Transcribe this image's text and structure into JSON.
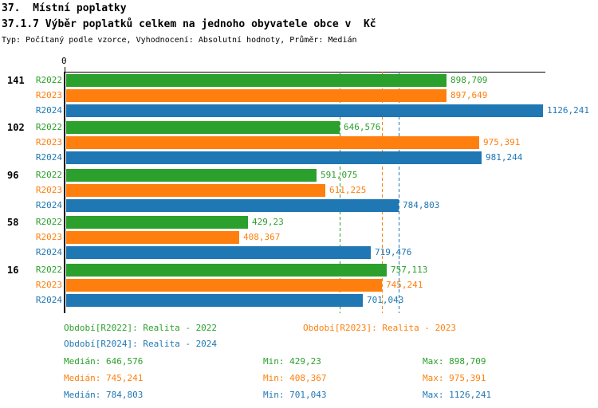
{
  "header": {
    "title": "37.  Místní poplatky",
    "subtitle": "37.1.7 Výběr poplatků celkem na jednoho obyvatele obce v  Kč",
    "meta": "Typ: Počítaný podle vzorce, Vyhodnocení: Absolutní hodnoty, Průměr: Medián"
  },
  "chart_data": {
    "type": "bar",
    "orientation": "horizontal",
    "title": "37.1.7 Výběr poplatků celkem na jednoho obyvatele obce v Kč",
    "axis": {
      "zero_label": "0",
      "xmin": 0,
      "xmax": 1126.241,
      "grid": false
    },
    "series": [
      "R2022",
      "R2023",
      "R2024"
    ],
    "series_colors": {
      "R2022": "#2ca02c",
      "R2023": "#ff7f0e",
      "R2024": "#1f77b4"
    },
    "groups": [
      {
        "label": "141",
        "values": [
          898.709,
          897.649,
          1126.241
        ],
        "display": [
          "898,709",
          "897,649",
          "1126,241"
        ]
      },
      {
        "label": "102",
        "values": [
          646.576,
          975.391,
          981.244
        ],
        "display": [
          "646,576",
          "975,391",
          "981,244"
        ]
      },
      {
        "label": "96",
        "values": [
          591.075,
          611.225,
          784.803
        ],
        "display": [
          "591,075",
          "611,225",
          "784,803"
        ]
      },
      {
        "label": "58",
        "values": [
          429.23,
          408.367,
          719.476
        ],
        "display": [
          "429,23",
          "408,367",
          "719,476"
        ]
      },
      {
        "label": "16",
        "values": [
          757.113,
          745.241,
          701.043
        ],
        "display": [
          "757,113",
          "745,241",
          "701,043"
        ]
      }
    ],
    "median_lines": [
      {
        "series": "R2022",
        "value": 646.576,
        "display": "646,576"
      },
      {
        "series": "R2023",
        "value": 745.241,
        "display": "745,241"
      },
      {
        "series": "R2024",
        "value": 784.803,
        "display": "784,803"
      }
    ]
  },
  "legend": {
    "items": [
      {
        "series": "R2022",
        "label": "Období[R2022]: Realita - 2022",
        "color": "#2ca02c"
      },
      {
        "series": "R2023",
        "label": "Období[R2023]: Realita - 2023",
        "color": "#ff7f0e"
      },
      {
        "series": "R2024",
        "label": "Období[R2024]: Realita - 2024",
        "color": "#1f77b4"
      }
    ]
  },
  "stats": {
    "rows": [
      {
        "series": "R2022",
        "color": "#2ca02c",
        "median": "Medián: 646,576",
        "min": "Min: 429,23",
        "max": "Max: 898,709"
      },
      {
        "series": "R2023",
        "color": "#ff7f0e",
        "median": "Medián: 745,241",
        "min": "Min: 408,367",
        "max": "Max: 975,391"
      },
      {
        "series": "R2024",
        "color": "#1f77b4",
        "median": "Medián: 784,803",
        "min": "Min: 701,043",
        "max": "Max: 1126,241"
      }
    ]
  },
  "colors": {
    "axis": "#000000",
    "background": "#ffffff"
  }
}
